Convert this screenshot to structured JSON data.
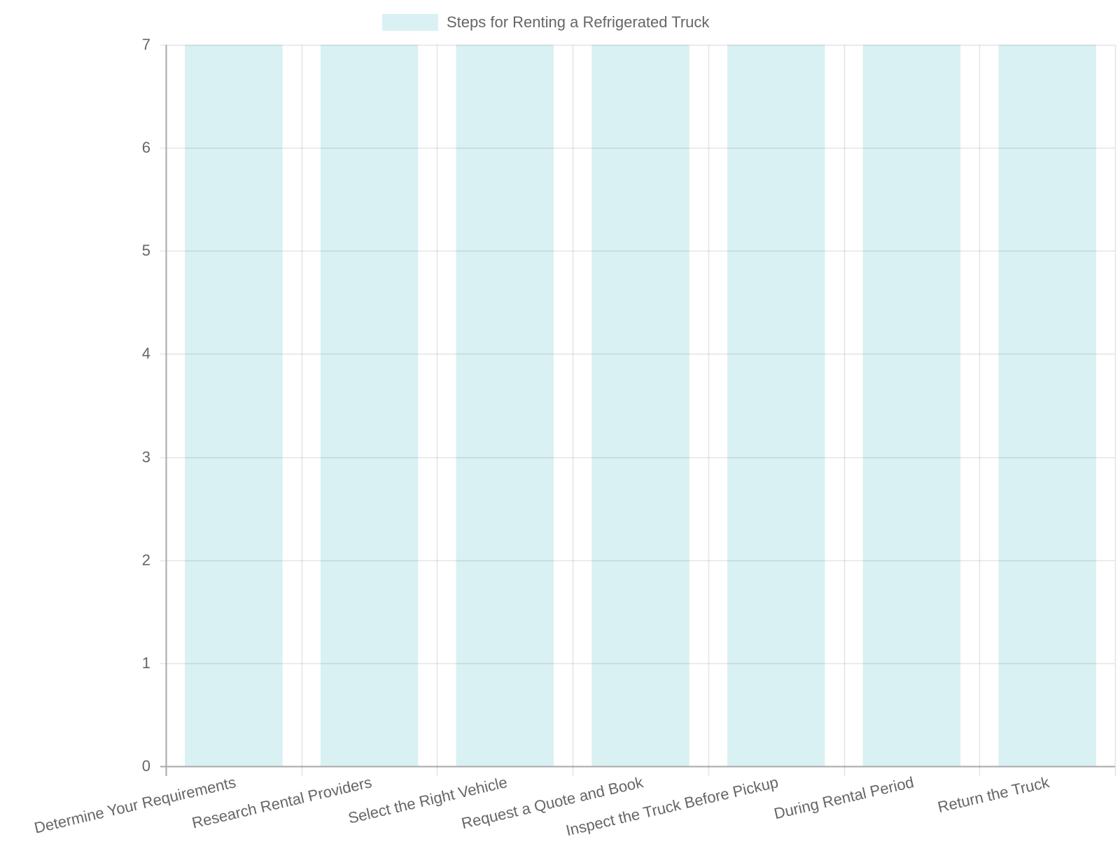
{
  "chart_data": {
    "type": "bar",
    "title": "",
    "xlabel": "",
    "ylabel": "",
    "ylim": [
      0,
      7
    ],
    "yticks": [
      0,
      1,
      2,
      3,
      4,
      5,
      6,
      7
    ],
    "grid": true,
    "legend_position": "top",
    "categories": [
      "Determine Your Requirements",
      "Research Rental Providers",
      "Select the Right Vehicle",
      "Request a Quote and Book",
      "Inspect the Truck Before Pickup",
      "During Rental Period",
      "Return the Truck"
    ],
    "series": [
      {
        "name": "Steps for Renting a Refrigerated Truck",
        "values": [
          7,
          7,
          7,
          7,
          7,
          7,
          7
        ],
        "color": "#d9f1f2"
      }
    ]
  },
  "legend": {
    "label": "Steps for Renting a Refrigerated Truck"
  },
  "colors": {
    "bar_fill": "#d9f1f2",
    "grid": "#e0e0e0",
    "axis": "#a8a8a8",
    "text": "#666666"
  }
}
